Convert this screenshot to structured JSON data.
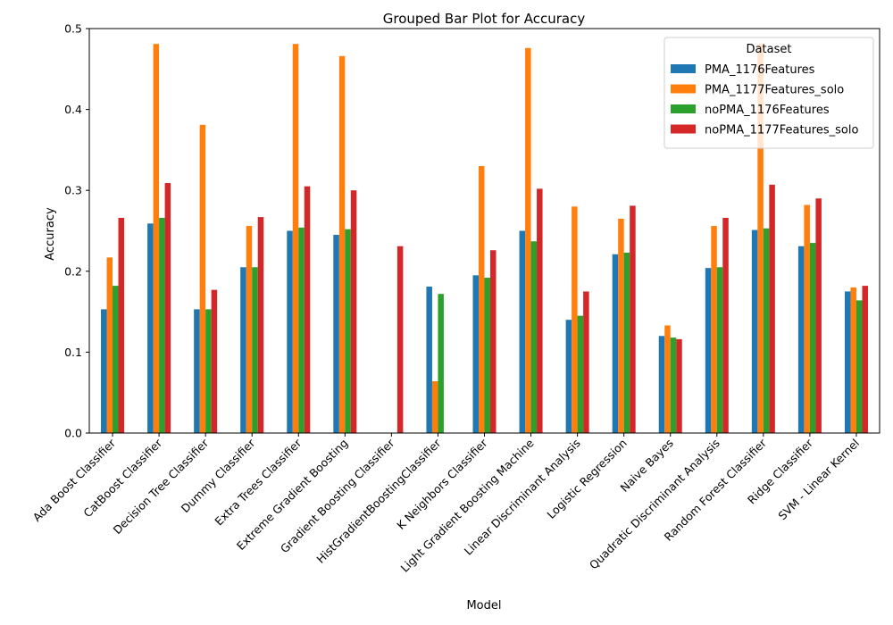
{
  "chart_data": {
    "type": "bar",
    "title": "Grouped Bar Plot for Accuracy",
    "xlabel": "Model",
    "ylabel": "Accuracy",
    "ylim": [
      0,
      0.5
    ],
    "yticks": [
      "0.0",
      "0.1",
      "0.2",
      "0.3",
      "0.4",
      "0.5"
    ],
    "legend": {
      "title": "Dataset",
      "placement": "top-right"
    },
    "categories": [
      "Ada Boost Classifier",
      "CatBoost Classifier",
      "Decision Tree Classifier",
      "Dummy Classifier",
      "Extra Trees Classifier",
      "Extreme Gradient Boosting",
      "Gradient Boosting Classifier",
      "HistGradientBoostingClassifier",
      "K Neighbors Classifier",
      "Light Gradient Boosting Machine",
      "Linear Discriminant Analysis",
      "Logistic Regression",
      "Naive Bayes",
      "Quadratic Discriminant Analysis",
      "Random Forest Classifier",
      "Ridge Classifier",
      "SVM - Linear Kernel"
    ],
    "series": [
      {
        "name": "PMA_1176Features",
        "color": "#1f77b4",
        "values": [
          0.153,
          0.259,
          0.153,
          0.205,
          0.25,
          0.245,
          0,
          0.181,
          0.195,
          0.25,
          0.14,
          0.221,
          0.12,
          0.204,
          0.251,
          0.231,
          0.175
        ]
      },
      {
        "name": "PMA_1177Features_solo",
        "color": "#ff7f0e",
        "values": [
          0.217,
          0.481,
          0.381,
          0.256,
          0.481,
          0.466,
          0,
          0.064,
          0.33,
          0.476,
          0.28,
          0.265,
          0.133,
          0.256,
          0.481,
          0.282,
          0.18
        ]
      },
      {
        "name": "noPMA_1176Features",
        "color": "#2ca02c",
        "values": [
          0.182,
          0.266,
          0.153,
          0.205,
          0.254,
          0.252,
          0,
          0.172,
          0.192,
          0.237,
          0.145,
          0.223,
          0.118,
          0.205,
          0.253,
          0.235,
          0.164
        ]
      },
      {
        "name": "noPMA_1177Features_solo",
        "color": "#d62728",
        "values": [
          0.266,
          0.309,
          0.177,
          0.267,
          0.305,
          0.3,
          0.231,
          0,
          0.226,
          0.302,
          0.175,
          0.281,
          0.116,
          0.266,
          0.307,
          0.29,
          0.182
        ]
      }
    ]
  }
}
